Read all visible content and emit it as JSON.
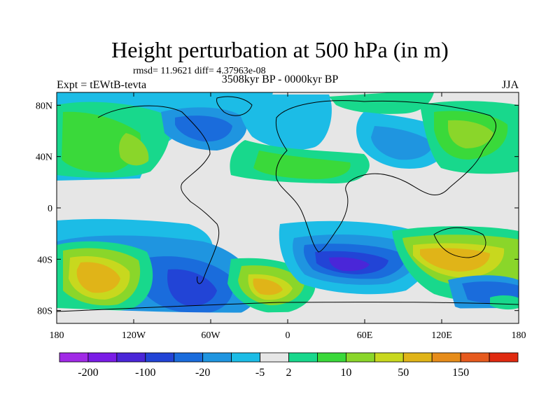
{
  "header": {
    "title": "Height perturbation at 500 hPa (in m)",
    "stats": "rmsd= 11.9621 diff= 4.37963e-08",
    "left_label": "Expt = tEWtB-tevta",
    "center_label": "3508kyr BP - 0000kyr BP",
    "right_label": "JJA"
  },
  "map": {
    "type": "filled-contour",
    "lon_range": [
      -180,
      180
    ],
    "lat_range": [
      -90,
      90
    ],
    "x_ticks": [
      "180",
      "120W",
      "60W",
      "0",
      "60E",
      "120E",
      "180"
    ],
    "x_tick_values": [
      -180,
      -120,
      -60,
      0,
      60,
      120,
      180
    ],
    "y_ticks": [
      "80N",
      "40N",
      "0",
      "40S",
      "80S"
    ],
    "y_tick_values": [
      80,
      40,
      0,
      -40,
      -80
    ]
  },
  "colorbar": {
    "colors": [
      "#a12ae6",
      "#7a1ce6",
      "#4a26d8",
      "#2244d6",
      "#1a6cdc",
      "#1f95e0",
      "#1cbce6",
      "#e6e6e6",
      "#18d88c",
      "#3ad93a",
      "#8ad62a",
      "#c8d81e",
      "#e0b418",
      "#e68c1a",
      "#e65a1e",
      "#e02a10"
    ],
    "labels": [
      "-200",
      "-100",
      "-20",
      "-5",
      "2",
      "10",
      "50",
      "150"
    ],
    "label_after_box": [
      1,
      3,
      5,
      7,
      8,
      10,
      12,
      14
    ]
  }
}
